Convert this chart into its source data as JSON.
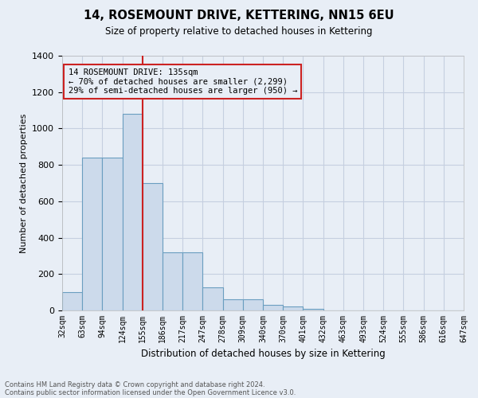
{
  "title": "14, ROSEMOUNT DRIVE, KETTERING, NN15 6EU",
  "subtitle": "Size of property relative to detached houses in Kettering",
  "xlabel": "Distribution of detached houses by size in Kettering",
  "ylabel": "Number of detached properties",
  "footnote1": "Contains HM Land Registry data © Crown copyright and database right 2024.",
  "footnote2": "Contains public sector information licensed under the Open Government Licence v3.0.",
  "bin_labels": [
    "32sqm",
    "63sqm",
    "94sqm",
    "124sqm",
    "155sqm",
    "186sqm",
    "217sqm",
    "247sqm",
    "278sqm",
    "309sqm",
    "340sqm",
    "370sqm",
    "401sqm",
    "432sqm",
    "463sqm",
    "493sqm",
    "524sqm",
    "555sqm",
    "586sqm",
    "616sqm",
    "647sqm"
  ],
  "bar_heights": [
    100,
    840,
    840,
    1080,
    700,
    320,
    320,
    125,
    60,
    60,
    30,
    20,
    10,
    0,
    0,
    0,
    0,
    0,
    0,
    0
  ],
  "bar_color": "#ccdaeb",
  "bar_edge_color": "#6a9ec0",
  "grid_color": "#c5cfe0",
  "background_color": "#e8eef6",
  "red_line_bin": 4,
  "red_line_color": "#cc2222",
  "annotation_line1": "14 ROSEMOUNT DRIVE: 135sqm",
  "annotation_line2": "← 70% of detached houses are smaller (2,299)",
  "annotation_line3": "29% of semi-detached houses are larger (950) →",
  "annotation_box_color": "#cc2222",
  "ylim": [
    0,
    1400
  ],
  "yticks": [
    0,
    200,
    400,
    600,
    800,
    1000,
    1200,
    1400
  ]
}
